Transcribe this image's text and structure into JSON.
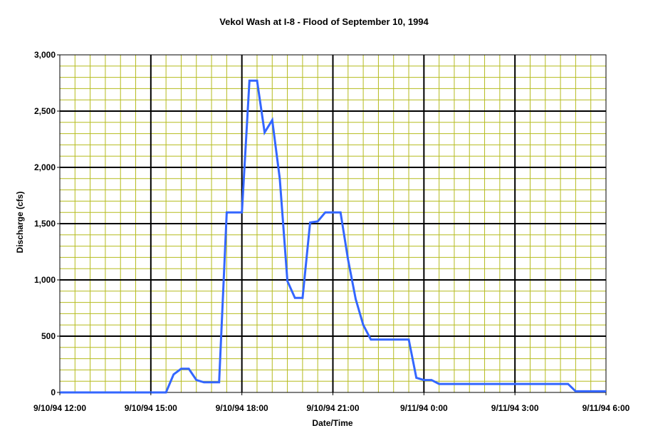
{
  "chart_data": {
    "type": "line",
    "title": "Vekol Wash at I-8 - Flood of September 10, 1994",
    "xlabel": "Date/Time",
    "ylabel": "Discharge (cfs)",
    "xlim": [
      "9/10/94 12:00",
      "9/11/94 6:00"
    ],
    "ylim": [
      0,
      3000
    ],
    "x_ticks": [
      "9/10/94 12:00",
      "9/10/94 15:00",
      "9/10/94 18:00",
      "9/10/94 21:00",
      "9/11/94 0:00",
      "9/11/94 3:00",
      "9/11/94 6:00"
    ],
    "y_ticks": [
      0,
      500,
      1000,
      1500,
      2000,
      2500,
      3000
    ],
    "y_tick_labels": [
      "0",
      "500",
      "1,000",
      "1,500",
      "2,000",
      "2,500",
      "3,000"
    ],
    "grid": true,
    "legend": "none",
    "colors": {
      "plot_background": "#ffffff",
      "minor_grid": "#b5bb1e",
      "major_grid": "#000000",
      "series_line": "#3366ff"
    },
    "series": [
      {
        "values": [
          {
            "x": "9/10/94 12:00",
            "y": 0
          },
          {
            "x": "9/10/94 15:30",
            "y": 0
          },
          {
            "x": "9/10/94 15:45",
            "y": 160
          },
          {
            "x": "9/10/94 16:00",
            "y": 210
          },
          {
            "x": "9/10/94 16:15",
            "y": 210
          },
          {
            "x": "9/10/94 16:30",
            "y": 110
          },
          {
            "x": "9/10/94 16:45",
            "y": 90
          },
          {
            "x": "9/10/94 17:15",
            "y": 90
          },
          {
            "x": "9/10/94 17:30",
            "y": 1600
          },
          {
            "x": "9/10/94 18:00",
            "y": 1600
          },
          {
            "x": "9/10/94 18:15",
            "y": 2770
          },
          {
            "x": "9/10/94 18:30",
            "y": 2770
          },
          {
            "x": "9/10/94 18:45",
            "y": 2310
          },
          {
            "x": "9/10/94 19:00",
            "y": 2420
          },
          {
            "x": "9/10/94 19:15",
            "y": 1900
          },
          {
            "x": "9/10/94 19:30",
            "y": 990
          },
          {
            "x": "9/10/94 19:45",
            "y": 840
          },
          {
            "x": "9/10/94 20:00",
            "y": 840
          },
          {
            "x": "9/10/94 20:15",
            "y": 1510
          },
          {
            "x": "9/10/94 20:30",
            "y": 1520
          },
          {
            "x": "9/10/94 20:45",
            "y": 1600
          },
          {
            "x": "9/10/94 21:15",
            "y": 1600
          },
          {
            "x": "9/10/94 21:30",
            "y": 1180
          },
          {
            "x": "9/10/94 21:45",
            "y": 830
          },
          {
            "x": "9/10/94 22:00",
            "y": 600
          },
          {
            "x": "9/10/94 22:15",
            "y": 470
          },
          {
            "x": "9/10/94 23:30",
            "y": 470
          },
          {
            "x": "9/10/94 23:45",
            "y": 130
          },
          {
            "x": "9/11/94 0:00",
            "y": 110
          },
          {
            "x": "9/11/94 0:15",
            "y": 110
          },
          {
            "x": "9/11/94 0:30",
            "y": 75
          },
          {
            "x": "9/11/94 4:45",
            "y": 75
          },
          {
            "x": "9/11/94 5:00",
            "y": 10
          },
          {
            "x": "9/11/94 6:00",
            "y": 10
          }
        ]
      }
    ]
  }
}
